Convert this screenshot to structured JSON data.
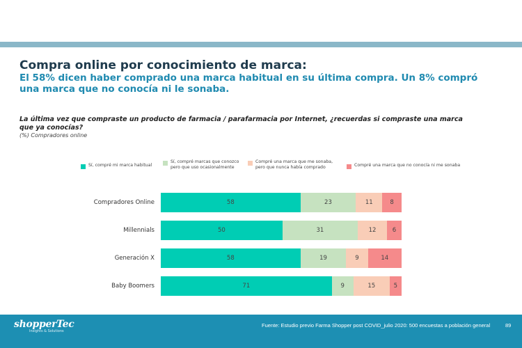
{
  "header": {
    "title": "Compra online por conocimiento de marca:",
    "subtitle": "El 58% dicen haber comprado una marca habitual en su última compra. Un 8% compró una marca que no conocía ni le sonaba."
  },
  "question": {
    "text": "La última vez que compraste un producto de farmacia / parafarmacia por Internet, ¿recuerdas si compraste una marca que ya conocías?",
    "base": "(%) Compradores online"
  },
  "chart_data": {
    "type": "bar",
    "orientation": "horizontal",
    "stacked": true,
    "categories": [
      "Compradores Online",
      "Millennials",
      "Generación X",
      "Baby Boomers"
    ],
    "series": [
      {
        "name": "Sí, compré mi marca habitual",
        "color": "#00cdb4",
        "values": [
          58,
          50,
          58,
          71
        ]
      },
      {
        "name": "Sí, compré marcas que conozco pero que uso ocasionalmente",
        "color": "#c6e2c0",
        "values": [
          23,
          31,
          19,
          9
        ]
      },
      {
        "name": "Compré una  marca que me sonaba, pero que nunca había comprado",
        "color": "#f9cdb7",
        "values": [
          11,
          12,
          9,
          15
        ]
      },
      {
        "name": "Compré una marca que no conocía ni me sonaba",
        "color": "#f58a8b",
        "values": [
          8,
          6,
          14,
          5
        ]
      }
    ],
    "legend_position": "top",
    "grid": false
  },
  "footer": {
    "logo_text": "shopperTec",
    "logo_subtext": "Insights & Solutions",
    "source": "Fuente: Estudio previo Farma Shopper post COVID_julio 2020: 500 encuestas a población general",
    "page_number": "89"
  }
}
